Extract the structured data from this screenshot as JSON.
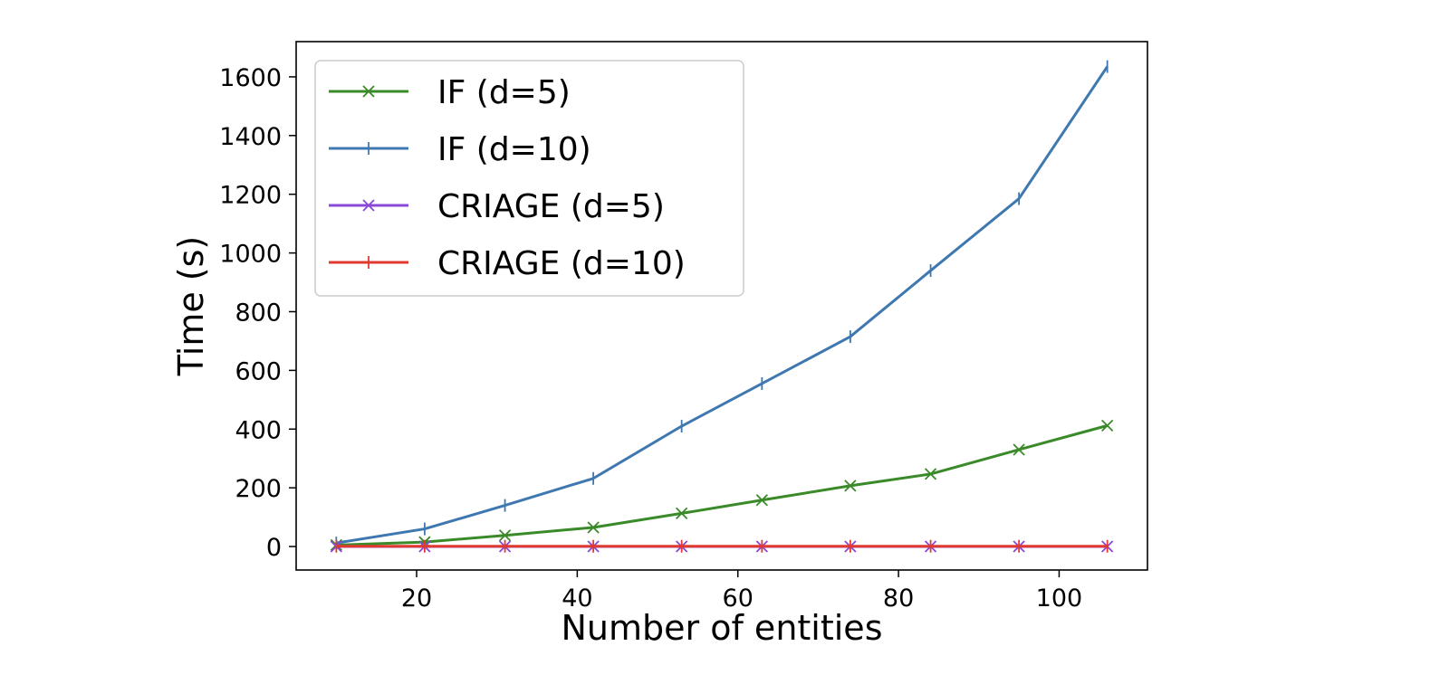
{
  "chart_data": {
    "type": "line",
    "title": "",
    "xlabel": "Number of entities",
    "ylabel": "Time (s)",
    "xlim": [
      5,
      111
    ],
    "ylim": [
      -80,
      1720
    ],
    "xticks": [
      20,
      40,
      60,
      80,
      100
    ],
    "yticks": [
      0,
      200,
      400,
      600,
      800,
      1000,
      1200,
      1400,
      1600
    ],
    "grid": false,
    "legend_position": "top-left",
    "x": [
      10,
      21,
      31,
      42,
      53,
      63,
      74,
      84,
      95,
      106
    ],
    "series": [
      {
        "name": "IF (d=5)",
        "color": "#3a8a2a",
        "marker": "x",
        "values": [
          5,
          15,
          38,
          65,
          113,
          158,
          207,
          247,
          330,
          412
        ]
      },
      {
        "name": "IF (d=10)",
        "color": "#3f78b0",
        "marker": "|",
        "values": [
          12,
          60,
          140,
          232,
          410,
          555,
          715,
          940,
          1185,
          1635
        ]
      },
      {
        "name": "CRIAGE (d=5)",
        "color": "#8a48d8",
        "marker": "x",
        "values": [
          0,
          0,
          0,
          0,
          0,
          0,
          0,
          0,
          0,
          0
        ]
      },
      {
        "name": "CRIAGE (d=10)",
        "color": "#e03a30",
        "marker": "|",
        "values": [
          1,
          1,
          1,
          1,
          1,
          1,
          1,
          1,
          1,
          1
        ]
      }
    ]
  }
}
